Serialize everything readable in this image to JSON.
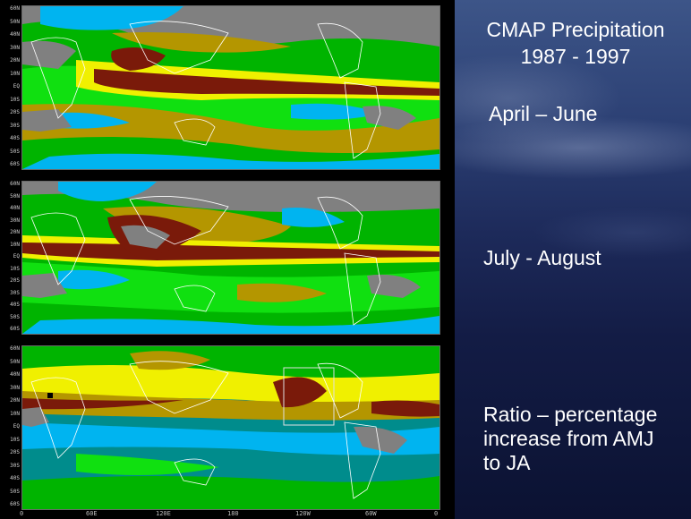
{
  "title_lines": [
    "CMAP Precipitation",
    "1987 - 1997"
  ],
  "panel_labels": {
    "amj": "April – June",
    "ja": "July - August",
    "ratio": [
      "Ratio – percentage",
      "increase from AMJ",
      "to JA"
    ]
  },
  "lat_labels": [
    "60N",
    "50N",
    "40N",
    "30N",
    "20N",
    "10N",
    "EQ",
    "10S",
    "20S",
    "30S",
    "40S",
    "50S",
    "60S"
  ],
  "lon_labels": [
    "0",
    "60E",
    "120E",
    "180",
    "120W",
    "60W",
    "0"
  ],
  "colors": {
    "brown": "#7a1a0a",
    "yellow": "#f0f000",
    "olive": "#b49600",
    "green": "#00b400",
    "bright_green": "#10e010",
    "cyan": "#00b4f0",
    "teal": "#008c8c",
    "gray": "#808080",
    "land_outline": "#ffffff"
  }
}
